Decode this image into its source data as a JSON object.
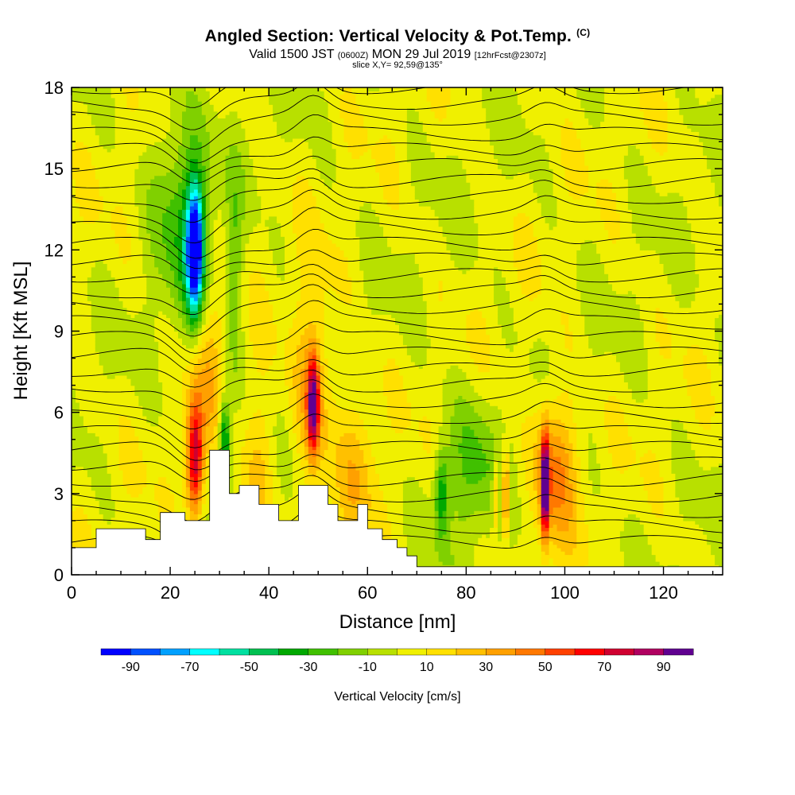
{
  "header": {
    "title": "Angled Section: Vertical Velocity & Pot.Temp.",
    "title_mark": "(C)",
    "valid_prefix": "Valid 1500 JST",
    "valid_zulu": "(0600Z)",
    "valid_date": "MON 29 Jul 2019",
    "forecast": "[12hrFcst@2307z]",
    "slice": "slice X,Y= 92,59@135°"
  },
  "chart_data": {
    "type": "heatmap",
    "xlabel": "Distance [nm]",
    "ylabel": "Height [Kft MSL]",
    "xlim": [
      0,
      132
    ],
    "ylim": [
      0,
      18
    ],
    "x_ticks": [
      0,
      20,
      40,
      60,
      80,
      100,
      120
    ],
    "y_ticks": [
      0,
      3,
      6,
      9,
      12,
      15,
      18
    ],
    "colorbar": {
      "label": "Vertical Velocity [cm/s]",
      "bounds": [
        -100,
        -90,
        -80,
        -70,
        -60,
        -50,
        -40,
        -30,
        -20,
        -10,
        0,
        10,
        20,
        30,
        40,
        50,
        60,
        70,
        80,
        90,
        100
      ],
      "tick_labels": [
        "-90",
        "-70",
        "-50",
        "-30",
        "-10",
        "10",
        "30",
        "50",
        "70",
        "90"
      ],
      "colors": [
        "#0000ff",
        "#0050ff",
        "#00a0ff",
        "#00ffff",
        "#00e0a0",
        "#00c050",
        "#00a800",
        "#40c000",
        "#80d000",
        "#b8e000",
        "#f0f000",
        "#ffe000",
        "#ffc000",
        "#ffa000",
        "#ff7800",
        "#ff4000",
        "#ff0000",
        "#d00030",
        "#b00060",
        "#600090"
      ]
    },
    "contours": "Potential temperature (C)",
    "features": [
      {
        "type": "downdraft",
        "x": 25,
        "z": 12,
        "peak": -90
      },
      {
        "type": "downdraft",
        "x": 31,
        "z": 5,
        "peak": -55
      },
      {
        "type": "updraft",
        "x": 25,
        "z": 4.5,
        "peak": 75
      },
      {
        "type": "updraft",
        "x": 49,
        "z": 6.5,
        "peak": 75
      },
      {
        "type": "updraft",
        "x": 96,
        "z": 3.5,
        "peak": 95
      },
      {
        "type": "updraft",
        "x": 88,
        "z": 3,
        "peak": 60
      },
      {
        "type": "downdraft",
        "x": 75,
        "z": 3,
        "peak": -35
      }
    ],
    "terrain": [
      [
        0,
        1
      ],
      [
        2,
        1
      ],
      [
        5,
        1.7
      ],
      [
        10,
        1.7
      ],
      [
        15,
        1.3
      ],
      [
        18,
        2.3
      ],
      [
        22,
        2.3
      ],
      [
        23,
        2
      ],
      [
        28,
        4.6
      ],
      [
        31,
        4.6
      ],
      [
        32,
        3
      ],
      [
        34,
        3.3
      ],
      [
        36,
        3.3
      ],
      [
        38,
        2.6
      ],
      [
        42,
        2
      ],
      [
        44,
        2
      ],
      [
        46,
        3.3
      ],
      [
        49,
        3.3
      ],
      [
        52,
        2.6
      ],
      [
        54,
        2
      ],
      [
        58,
        2.6
      ],
      [
        60,
        1.7
      ],
      [
        63,
        1.3
      ],
      [
        66,
        1
      ],
      [
        68,
        0.7
      ],
      [
        70,
        0.3
      ],
      [
        132,
        0.3
      ]
    ]
  }
}
